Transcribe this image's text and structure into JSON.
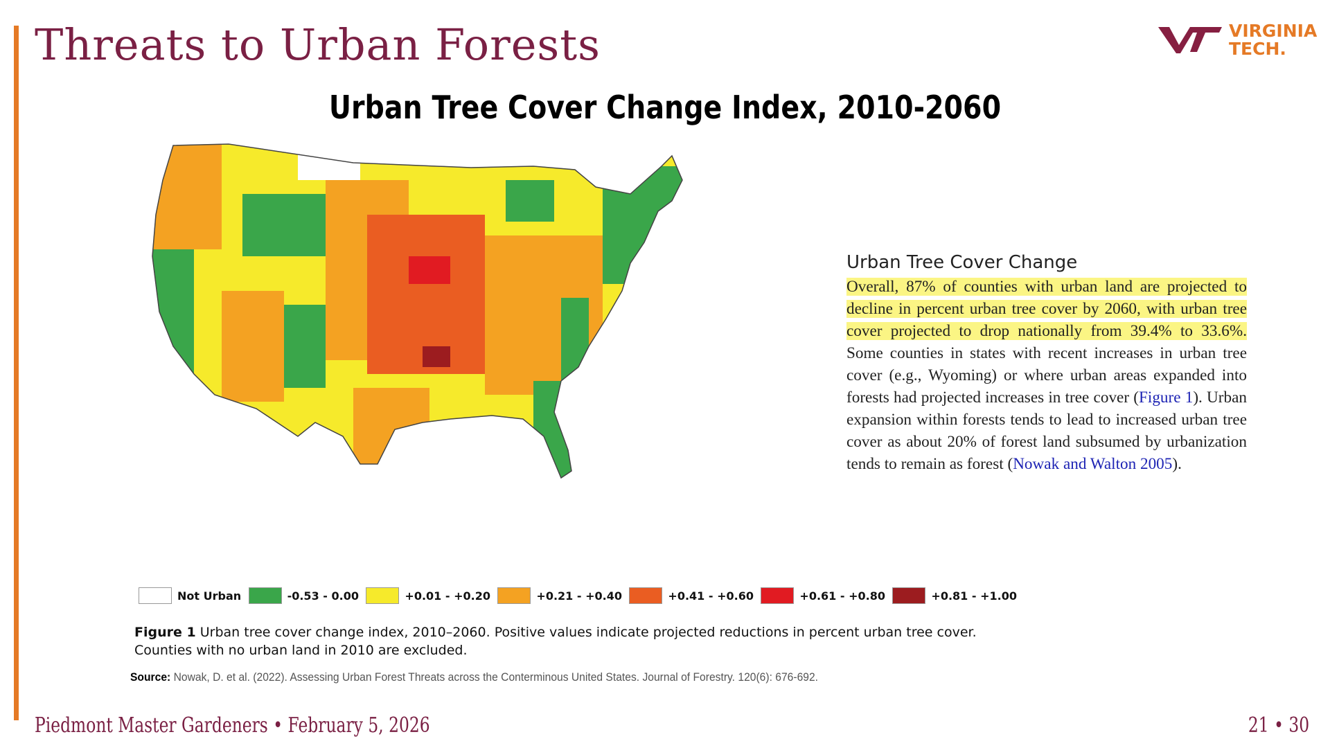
{
  "slide": {
    "title": "Threats to Urban Forests",
    "figure_title": "Urban Tree Cover Change Index, 2010-2060",
    "accent_color": "#e57a26",
    "title_color": "#7a2044"
  },
  "logo": {
    "line1": "VIRGINIA",
    "line2": "TECH.",
    "icon": "vt-logo-icon"
  },
  "side_panel": {
    "heading": "Urban Tree Cover Change",
    "highlighted_text": "Overall, 87% of counties with urban land are projected to decline in percent urban tree cover by 2060, with urban tree cover projected to drop nationally from 39.4% to 33.6%.",
    "text_1": " Some counties in states with recent increases in urban tree cover (e.g., Wyoming) or where urban areas expanded into forests had projected increases in tree cover (",
    "link_1": "Figure 1",
    "text_2": "). Urban expansion within forests tends to lead to increased urban tree cover as about 20% of forest land subsumed by urbanization tends to remain as forest (",
    "link_2": "Nowak and Walton 2005",
    "text_3": ").",
    "highlight_color": "#fbf584",
    "link_color": "#1e24b4"
  },
  "map": {
    "icon": "us-county-map-icon",
    "category_colors": {
      "not_urban": "#ffffff",
      "decline": "#3aa64a",
      "low": "#f6ea2b",
      "mid": "#f4a222",
      "high": "#ea5d22",
      "very_high": "#e11b22",
      "extreme": "#9c1c1f"
    }
  },
  "legend": {
    "items": [
      {
        "label": "Not Urban",
        "color": "#ffffff"
      },
      {
        "label": "-0.53 - 0.00",
        "color": "#3aa64a"
      },
      {
        "label": "+0.01 - +0.20",
        "color": "#f6ea2b"
      },
      {
        "label": "+0.21 - +0.40",
        "color": "#f4a222"
      },
      {
        "label": "+0.41 - +0.60",
        "color": "#ea5d22"
      },
      {
        "label": "+0.61 - +0.80",
        "color": "#e11b22"
      },
      {
        "label": "+0.81 - +1.00",
        "color": "#9c1c1f"
      }
    ]
  },
  "caption": {
    "label": "Figure 1",
    "text": " Urban tree cover change index, 2010–2060. Positive values indicate projected reductions in percent urban tree cover. Counties with no urban land in 2010 are excluded."
  },
  "source": {
    "label": "Source:",
    "text": " Nowak, D. et al. (2022). Assessing Urban Forest Threats across the Conterminous United States. Journal of Forestry. 120(6): 676-692."
  },
  "footer": {
    "left": "Piedmont Master Gardeners • February 5, 2026",
    "right": "21 • 30"
  }
}
